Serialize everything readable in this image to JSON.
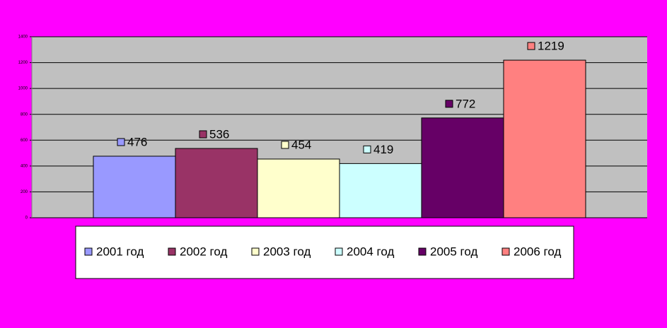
{
  "chart_data": {
    "type": "bar",
    "series": [
      {
        "name": "2001 год",
        "color": "#9999ff",
        "values": [
          476
        ]
      },
      {
        "name": "2002 год",
        "color": "#993366",
        "values": [
          536
        ]
      },
      {
        "name": "2003 год",
        "color": "#ffffcc",
        "values": [
          454
        ]
      },
      {
        "name": "2004 год",
        "color": "#ccffff",
        "values": [
          419
        ]
      },
      {
        "name": "2005 год",
        "color": "#660066",
        "values": [
          772
        ]
      },
      {
        "name": "2006 год",
        "color": "#ff8080",
        "values": [
          1219
        ]
      }
    ],
    "ylim": [
      0,
      1400
    ],
    "yticks": [
      0,
      200,
      400,
      600,
      800,
      1000,
      1200,
      1400
    ],
    "grid": true,
    "legend": "bottom"
  }
}
